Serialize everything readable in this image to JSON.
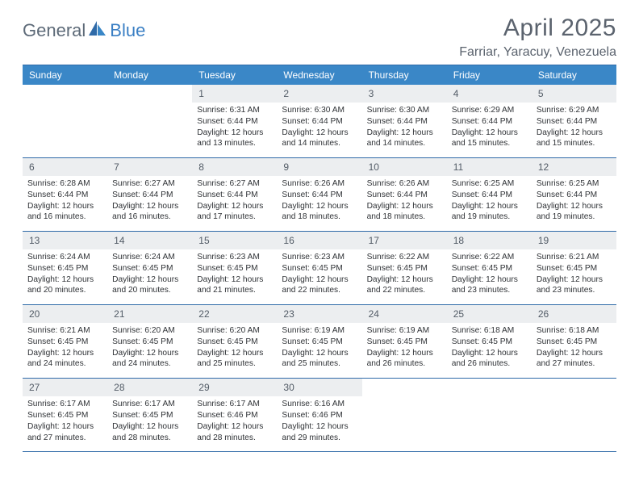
{
  "brand": {
    "part1": "General",
    "part2": "Blue"
  },
  "title": "April 2025",
  "location": "Farriar, Yaracuy, Venezuela",
  "colors": {
    "header_bg": "#3a87c7",
    "border": "#2f6aa8",
    "daynum_bg": "#eceef0",
    "text": "#333333",
    "title_text": "#5b636e",
    "brand_gray": "#5d6a78",
    "brand_blue": "#3a7fc4"
  },
  "weekdays": [
    "Sunday",
    "Monday",
    "Tuesday",
    "Wednesday",
    "Thursday",
    "Friday",
    "Saturday"
  ],
  "weeks": [
    [
      {
        "n": "",
        "sr": "",
        "ss": "",
        "dl": ""
      },
      {
        "n": "",
        "sr": "",
        "ss": "",
        "dl": ""
      },
      {
        "n": "1",
        "sr": "Sunrise: 6:31 AM",
        "ss": "Sunset: 6:44 PM",
        "dl": "Daylight: 12 hours and 13 minutes."
      },
      {
        "n": "2",
        "sr": "Sunrise: 6:30 AM",
        "ss": "Sunset: 6:44 PM",
        "dl": "Daylight: 12 hours and 14 minutes."
      },
      {
        "n": "3",
        "sr": "Sunrise: 6:30 AM",
        "ss": "Sunset: 6:44 PM",
        "dl": "Daylight: 12 hours and 14 minutes."
      },
      {
        "n": "4",
        "sr": "Sunrise: 6:29 AM",
        "ss": "Sunset: 6:44 PM",
        "dl": "Daylight: 12 hours and 15 minutes."
      },
      {
        "n": "5",
        "sr": "Sunrise: 6:29 AM",
        "ss": "Sunset: 6:44 PM",
        "dl": "Daylight: 12 hours and 15 minutes."
      }
    ],
    [
      {
        "n": "6",
        "sr": "Sunrise: 6:28 AM",
        "ss": "Sunset: 6:44 PM",
        "dl": "Daylight: 12 hours and 16 minutes."
      },
      {
        "n": "7",
        "sr": "Sunrise: 6:27 AM",
        "ss": "Sunset: 6:44 PM",
        "dl": "Daylight: 12 hours and 16 minutes."
      },
      {
        "n": "8",
        "sr": "Sunrise: 6:27 AM",
        "ss": "Sunset: 6:44 PM",
        "dl": "Daylight: 12 hours and 17 minutes."
      },
      {
        "n": "9",
        "sr": "Sunrise: 6:26 AM",
        "ss": "Sunset: 6:44 PM",
        "dl": "Daylight: 12 hours and 18 minutes."
      },
      {
        "n": "10",
        "sr": "Sunrise: 6:26 AM",
        "ss": "Sunset: 6:44 PM",
        "dl": "Daylight: 12 hours and 18 minutes."
      },
      {
        "n": "11",
        "sr": "Sunrise: 6:25 AM",
        "ss": "Sunset: 6:44 PM",
        "dl": "Daylight: 12 hours and 19 minutes."
      },
      {
        "n": "12",
        "sr": "Sunrise: 6:25 AM",
        "ss": "Sunset: 6:44 PM",
        "dl": "Daylight: 12 hours and 19 minutes."
      }
    ],
    [
      {
        "n": "13",
        "sr": "Sunrise: 6:24 AM",
        "ss": "Sunset: 6:45 PM",
        "dl": "Daylight: 12 hours and 20 minutes."
      },
      {
        "n": "14",
        "sr": "Sunrise: 6:24 AM",
        "ss": "Sunset: 6:45 PM",
        "dl": "Daylight: 12 hours and 20 minutes."
      },
      {
        "n": "15",
        "sr": "Sunrise: 6:23 AM",
        "ss": "Sunset: 6:45 PM",
        "dl": "Daylight: 12 hours and 21 minutes."
      },
      {
        "n": "16",
        "sr": "Sunrise: 6:23 AM",
        "ss": "Sunset: 6:45 PM",
        "dl": "Daylight: 12 hours and 22 minutes."
      },
      {
        "n": "17",
        "sr": "Sunrise: 6:22 AM",
        "ss": "Sunset: 6:45 PM",
        "dl": "Daylight: 12 hours and 22 minutes."
      },
      {
        "n": "18",
        "sr": "Sunrise: 6:22 AM",
        "ss": "Sunset: 6:45 PM",
        "dl": "Daylight: 12 hours and 23 minutes."
      },
      {
        "n": "19",
        "sr": "Sunrise: 6:21 AM",
        "ss": "Sunset: 6:45 PM",
        "dl": "Daylight: 12 hours and 23 minutes."
      }
    ],
    [
      {
        "n": "20",
        "sr": "Sunrise: 6:21 AM",
        "ss": "Sunset: 6:45 PM",
        "dl": "Daylight: 12 hours and 24 minutes."
      },
      {
        "n": "21",
        "sr": "Sunrise: 6:20 AM",
        "ss": "Sunset: 6:45 PM",
        "dl": "Daylight: 12 hours and 24 minutes."
      },
      {
        "n": "22",
        "sr": "Sunrise: 6:20 AM",
        "ss": "Sunset: 6:45 PM",
        "dl": "Daylight: 12 hours and 25 minutes."
      },
      {
        "n": "23",
        "sr": "Sunrise: 6:19 AM",
        "ss": "Sunset: 6:45 PM",
        "dl": "Daylight: 12 hours and 25 minutes."
      },
      {
        "n": "24",
        "sr": "Sunrise: 6:19 AM",
        "ss": "Sunset: 6:45 PM",
        "dl": "Daylight: 12 hours and 26 minutes."
      },
      {
        "n": "25",
        "sr": "Sunrise: 6:18 AM",
        "ss": "Sunset: 6:45 PM",
        "dl": "Daylight: 12 hours and 26 minutes."
      },
      {
        "n": "26",
        "sr": "Sunrise: 6:18 AM",
        "ss": "Sunset: 6:45 PM",
        "dl": "Daylight: 12 hours and 27 minutes."
      }
    ],
    [
      {
        "n": "27",
        "sr": "Sunrise: 6:17 AM",
        "ss": "Sunset: 6:45 PM",
        "dl": "Daylight: 12 hours and 27 minutes."
      },
      {
        "n": "28",
        "sr": "Sunrise: 6:17 AM",
        "ss": "Sunset: 6:45 PM",
        "dl": "Daylight: 12 hours and 28 minutes."
      },
      {
        "n": "29",
        "sr": "Sunrise: 6:17 AM",
        "ss": "Sunset: 6:46 PM",
        "dl": "Daylight: 12 hours and 28 minutes."
      },
      {
        "n": "30",
        "sr": "Sunrise: 6:16 AM",
        "ss": "Sunset: 6:46 PM",
        "dl": "Daylight: 12 hours and 29 minutes."
      },
      {
        "n": "",
        "sr": "",
        "ss": "",
        "dl": ""
      },
      {
        "n": "",
        "sr": "",
        "ss": "",
        "dl": ""
      },
      {
        "n": "",
        "sr": "",
        "ss": "",
        "dl": ""
      }
    ]
  ]
}
